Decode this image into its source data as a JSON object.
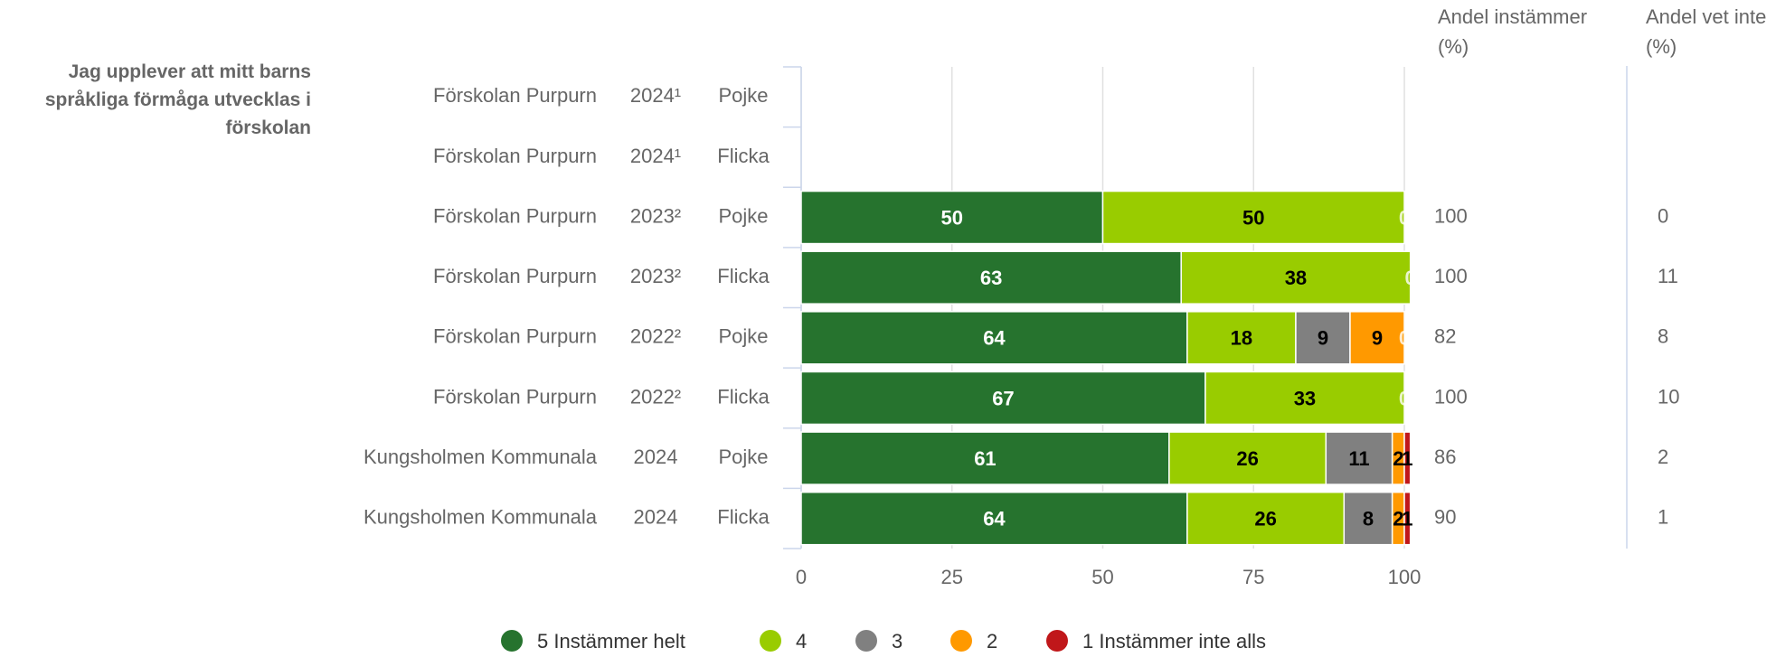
{
  "chart_data": {
    "type": "stacked_barh",
    "title": "Jag upplever att mitt barns språkliga förmåga utvecklas i förskolan",
    "categories": [
      [
        "Förskolan Purpurn",
        "2024¹",
        "Pojke"
      ],
      [
        "Förskolan Purpurn",
        "2024¹",
        "Flicka"
      ],
      [
        "Förskolan Purpurn",
        "2023²",
        "Pojke"
      ],
      [
        "Förskolan Purpurn",
        "2023²",
        "Flicka"
      ],
      [
        "Förskolan Purpurn",
        "2022²",
        "Pojke"
      ],
      [
        "Förskolan Purpurn",
        "2022²",
        "Flicka"
      ],
      [
        "Kungsholmen Kommunala",
        "2024",
        "Pojke"
      ],
      [
        "Kungsholmen Kommunala",
        "2024",
        "Flicka"
      ]
    ],
    "series": [
      {
        "name": "5 Instämmer helt",
        "color": "#26732e",
        "label_color": "#ffffff",
        "values": [
          null,
          null,
          50,
          63,
          64,
          67,
          61,
          64
        ]
      },
      {
        "name": "4",
        "color": "#99cc00",
        "label_color": "#000000",
        "values": [
          null,
          null,
          50,
          38,
          18,
          33,
          26,
          26
        ]
      },
      {
        "name": "3",
        "color": "#808080",
        "label_color": "#000000",
        "values": [
          null,
          null,
          0,
          0,
          9,
          0,
          11,
          8
        ]
      },
      {
        "name": "2",
        "color": "#ff9900",
        "label_color": "#000000",
        "values": [
          null,
          null,
          null,
          null,
          9,
          null,
          2,
          2
        ]
      },
      {
        "name": "1 Instämmer inte alls",
        "color": "#c0171a",
        "label_color": "#000000",
        "values": [
          null,
          null,
          null,
          null,
          0,
          null,
          1,
          1
        ]
      }
    ],
    "xlim": [
      0,
      100
    ],
    "xticks": [
      0,
      25,
      50,
      75,
      100
    ],
    "grid": true,
    "legend": "bottom",
    "columns": [
      {
        "header": "Andel instämmer (%)",
        "values": [
          null,
          null,
          100,
          100,
          82,
          100,
          86,
          90
        ]
      },
      {
        "header": "Andel vet inte (%)",
        "values": [
          null,
          null,
          0,
          11,
          8,
          10,
          2,
          1
        ]
      }
    ]
  }
}
